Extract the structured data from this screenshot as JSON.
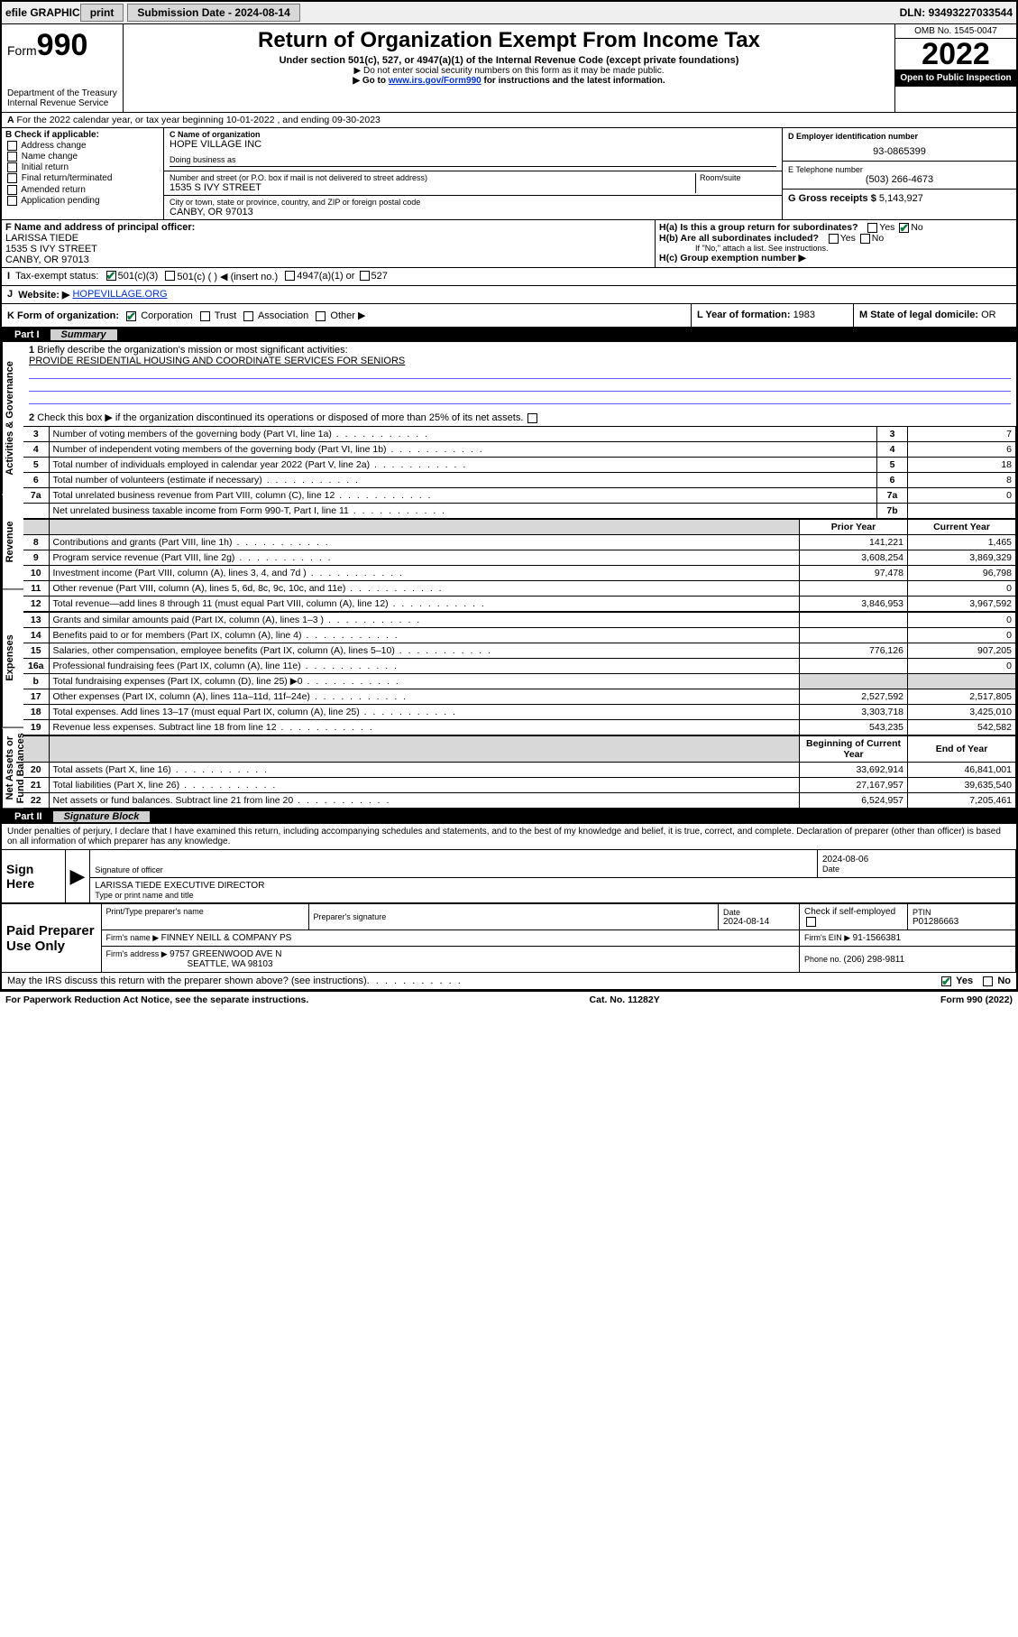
{
  "topbar": {
    "efile": "efile GRAPHIC",
    "print": "print",
    "submission_label": "Submission Date - ",
    "submission_date": "2024-08-14",
    "dln_label": "DLN: ",
    "dln": "93493227033544"
  },
  "header": {
    "form_label": "Form",
    "form_no": "990",
    "dept": "Department of the Treasury",
    "irs": "Internal Revenue Service",
    "title": "Return of Organization Exempt From Income Tax",
    "sub": "Under section 501(c), 527, or 4947(a)(1) of the Internal Revenue Code (except private foundations)",
    "note1": "▶ Do not enter social security numbers on this form as it may be made public.",
    "note2_pre": "▶ Go to ",
    "note2_link": "www.irs.gov/Form990",
    "note2_post": " for instructions and the latest information.",
    "omb": "OMB No. 1545-0047",
    "year": "2022",
    "inspect": "Open to Public Inspection"
  },
  "period": {
    "line": "For the 2022 calendar year, or tax year beginning 10-01-2022   , and ending 09-30-2023"
  },
  "boxB": {
    "label": "B Check if applicable:",
    "opts": [
      "Address change",
      "Name change",
      "Initial return",
      "Final return/terminated",
      "Amended return",
      "Application pending"
    ]
  },
  "boxC": {
    "name_label": "C Name of organization",
    "name": "HOPE VILLAGE INC",
    "dba_label": "Doing business as",
    "addr_label": "Number and street (or P.O. box if mail is not delivered to street address)",
    "room_label": "Room/suite",
    "addr": "1535 S IVY STREET",
    "city_label": "City or town, state or province, country, and ZIP or foreign postal code",
    "city": "CANBY, OR  97013"
  },
  "boxD": {
    "label": "D Employer identification number",
    "val": "93-0865399"
  },
  "boxE": {
    "label": "E Telephone number",
    "val": "(503) 266-4673"
  },
  "boxG": {
    "label": "G Gross receipts $ ",
    "val": "5,143,927"
  },
  "boxF": {
    "label": "F Name and address of principal officer:",
    "name": "LARISSA TIEDE",
    "addr1": "1535 S IVY STREET",
    "addr2": "CANBY, OR  97013"
  },
  "boxH": {
    "a": "H(a)  Is this a group return for subordinates?",
    "b": "H(b)  Are all subordinates included?",
    "b_note": "If \"No,\" attach a list. See instructions.",
    "c": "H(c)  Group exemption number ▶",
    "yes": "Yes",
    "no": "No"
  },
  "boxI": {
    "label": "Tax-exempt status:",
    "o1": "501(c)(3)",
    "o2": "501(c) (  ) ◀ (insert no.)",
    "o3": "4947(a)(1) or",
    "o4": "527"
  },
  "boxJ": {
    "label": "Website: ▶",
    "val": "HOPEVILLAGE.ORG"
  },
  "boxK": {
    "label": "K Form of organization:",
    "o1": "Corporation",
    "o2": "Trust",
    "o3": "Association",
    "o4": "Other ▶"
  },
  "boxL": {
    "label": "L Year of formation: ",
    "val": "1983"
  },
  "boxM": {
    "label": "M State of legal domicile: ",
    "val": "OR"
  },
  "part1": {
    "label": "Part I",
    "title": "Summary",
    "q1": "Briefly describe the organization's mission or most significant activities:",
    "mission": "PROVIDE RESIDENTIAL HOUSING AND COORDINATE SERVICES FOR SENIORS",
    "q2": "Check this box ▶        if the organization discontinued its operations or disposed of more than 25% of its net assets.",
    "sections": {
      "gov": "Activities & Governance",
      "rev": "Revenue",
      "exp": "Expenses",
      "net": "Net Assets or Fund Balances"
    },
    "col_prior": "Prior Year",
    "col_curr": "Current Year",
    "col_beg": "Beginning of Current Year",
    "col_end": "End of Year",
    "rows_gov": [
      {
        "n": "3",
        "d": "Number of voting members of the governing body (Part VI, line 1a)",
        "box": "3",
        "v": "7"
      },
      {
        "n": "4",
        "d": "Number of independent voting members of the governing body (Part VI, line 1b)",
        "box": "4",
        "v": "6"
      },
      {
        "n": "5",
        "d": "Total number of individuals employed in calendar year 2022 (Part V, line 2a)",
        "box": "5",
        "v": "18"
      },
      {
        "n": "6",
        "d": "Total number of volunteers (estimate if necessary)",
        "box": "6",
        "v": "8"
      },
      {
        "n": "7a",
        "d": "Total unrelated business revenue from Part VIII, column (C), line 12",
        "box": "7a",
        "v": "0"
      },
      {
        "n": "",
        "d": "Net unrelated business taxable income from Form 990-T, Part I, line 11",
        "box": "7b",
        "v": ""
      }
    ],
    "rows_rev": [
      {
        "n": "8",
        "d": "Contributions and grants (Part VIII, line 1h)",
        "p": "141,221",
        "c": "1,465"
      },
      {
        "n": "9",
        "d": "Program service revenue (Part VIII, line 2g)",
        "p": "3,608,254",
        "c": "3,869,329"
      },
      {
        "n": "10",
        "d": "Investment income (Part VIII, column (A), lines 3, 4, and 7d )",
        "p": "97,478",
        "c": "96,798"
      },
      {
        "n": "11",
        "d": "Other revenue (Part VIII, column (A), lines 5, 6d, 8c, 9c, 10c, and 11e)",
        "p": "",
        "c": "0"
      },
      {
        "n": "12",
        "d": "Total revenue—add lines 8 through 11 (must equal Part VIII, column (A), line 12)",
        "p": "3,846,953",
        "c": "3,967,592"
      }
    ],
    "rows_exp": [
      {
        "n": "13",
        "d": "Grants and similar amounts paid (Part IX, column (A), lines 1–3 )",
        "p": "",
        "c": "0"
      },
      {
        "n": "14",
        "d": "Benefits paid to or for members (Part IX, column (A), line 4)",
        "p": "",
        "c": "0"
      },
      {
        "n": "15",
        "d": "Salaries, other compensation, employee benefits (Part IX, column (A), lines 5–10)",
        "p": "776,126",
        "c": "907,205"
      },
      {
        "n": "16a",
        "d": "Professional fundraising fees (Part IX, column (A), line 11e)",
        "p": "",
        "c": "0"
      },
      {
        "n": "b",
        "d": "Total fundraising expenses (Part IX, column (D), line 25) ▶0",
        "p": "SHADE",
        "c": "SHADE"
      },
      {
        "n": "17",
        "d": "Other expenses (Part IX, column (A), lines 11a–11d, 11f–24e)",
        "p": "2,527,592",
        "c": "2,517,805"
      },
      {
        "n": "18",
        "d": "Total expenses. Add lines 13–17 (must equal Part IX, column (A), line 25)",
        "p": "3,303,718",
        "c": "3,425,010"
      },
      {
        "n": "19",
        "d": "Revenue less expenses. Subtract line 18 from line 12",
        "p": "543,235",
        "c": "542,582"
      }
    ],
    "rows_net": [
      {
        "n": "20",
        "d": "Total assets (Part X, line 16)",
        "p": "33,692,914",
        "c": "46,841,001"
      },
      {
        "n": "21",
        "d": "Total liabilities (Part X, line 26)",
        "p": "27,167,957",
        "c": "39,635,540"
      },
      {
        "n": "22",
        "d": "Net assets or fund balances. Subtract line 21 from line 20",
        "p": "6,524,957",
        "c": "7,205,461"
      }
    ]
  },
  "part2": {
    "label": "Part II",
    "title": "Signature Block",
    "decl": "Under penalties of perjury, I declare that I have examined this return, including accompanying schedules and statements, and to the best of my knowledge and belief, it is true, correct, and complete. Declaration of preparer (other than officer) is based on all information of which preparer has any knowledge.",
    "sign_here": "Sign Here",
    "sig_officer": "Signature of officer",
    "sig_date": "2024-08-06",
    "date_label": "Date",
    "officer_name": "LARISSA TIEDE  EXECUTIVE DIRECTOR",
    "officer_label": "Type or print name and title",
    "paid": "Paid Preparer Use Only",
    "pp_name_label": "Print/Type preparer's name",
    "pp_sig_label": "Preparer's signature",
    "pp_date_label": "Date",
    "pp_date": "2024-08-14",
    "pp_check": "Check        if self-employed",
    "ptin_label": "PTIN",
    "ptin": "P01286663",
    "firm_name_label": "Firm's name    ▶ ",
    "firm_name": "FINNEY NEILL & COMPANY PS",
    "firm_ein_label": "Firm's EIN ▶ ",
    "firm_ein": "91-1566381",
    "firm_addr_label": "Firm's address ▶ ",
    "firm_addr1": "9757 GREENWOOD AVE N",
    "firm_addr2": "SEATTLE, WA  98103",
    "phone_label": "Phone no. ",
    "phone": "(206) 298-9811",
    "discuss": "May the IRS discuss this return with the preparer shown above? (see instructions)"
  },
  "footer": {
    "pra": "For Paperwork Reduction Act Notice, see the separate instructions.",
    "cat": "Cat. No. 11282Y",
    "form": "Form 990 (2022)"
  }
}
